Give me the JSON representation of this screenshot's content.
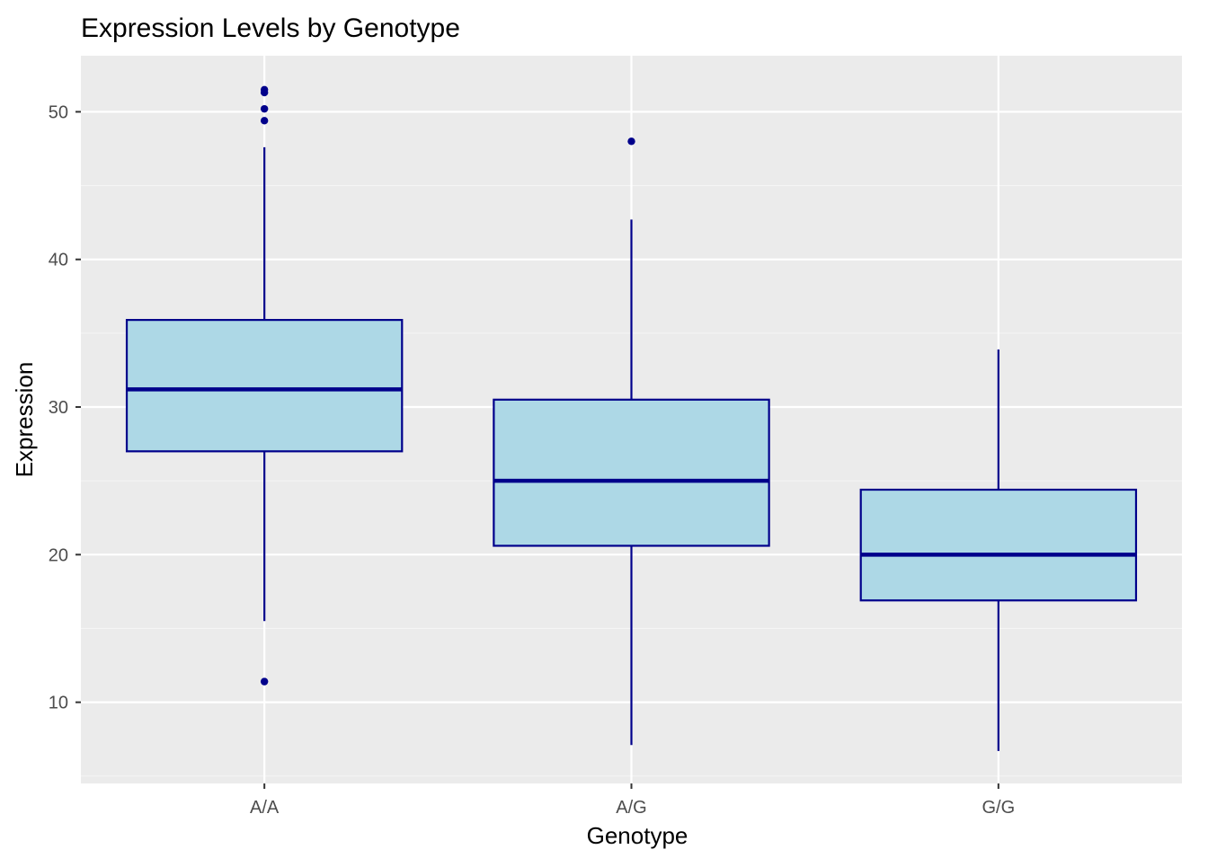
{
  "colors": {
    "panel_background": "#EBEBEB",
    "grid_major": "#FFFFFF",
    "grid_minor": "#F5F5F5",
    "box_fill": "#ADD8E6",
    "box_outline": "#00008B",
    "tick_text": "#4D4D4D"
  },
  "chart_data": {
    "type": "boxplot",
    "title": "Expression Levels by Genotype",
    "xlabel": "Genotype",
    "ylabel": "Expression",
    "categories": [
      "A/A",
      "A/G",
      "G/G"
    ],
    "ylim": [
      4.5,
      53.8
    ],
    "yticks": [
      10,
      20,
      30,
      40,
      50
    ],
    "grid": true,
    "legend": "none",
    "boxes": [
      {
        "category": "A/A",
        "whisker_low": 15.5,
        "q1": 27.0,
        "median": 31.2,
        "q3": 35.9,
        "whisker_high": 47.6,
        "outliers": [
          11.4,
          49.4,
          50.2,
          51.3,
          51.5
        ]
      },
      {
        "category": "A/G",
        "whisker_low": 7.1,
        "q1": 20.6,
        "median": 25.0,
        "q3": 30.5,
        "whisker_high": 42.7,
        "outliers": [
          48.0
        ]
      },
      {
        "category": "G/G",
        "whisker_low": 6.7,
        "q1": 16.9,
        "median": 20.0,
        "q3": 24.4,
        "whisker_high": 33.9,
        "outliers": []
      }
    ]
  }
}
